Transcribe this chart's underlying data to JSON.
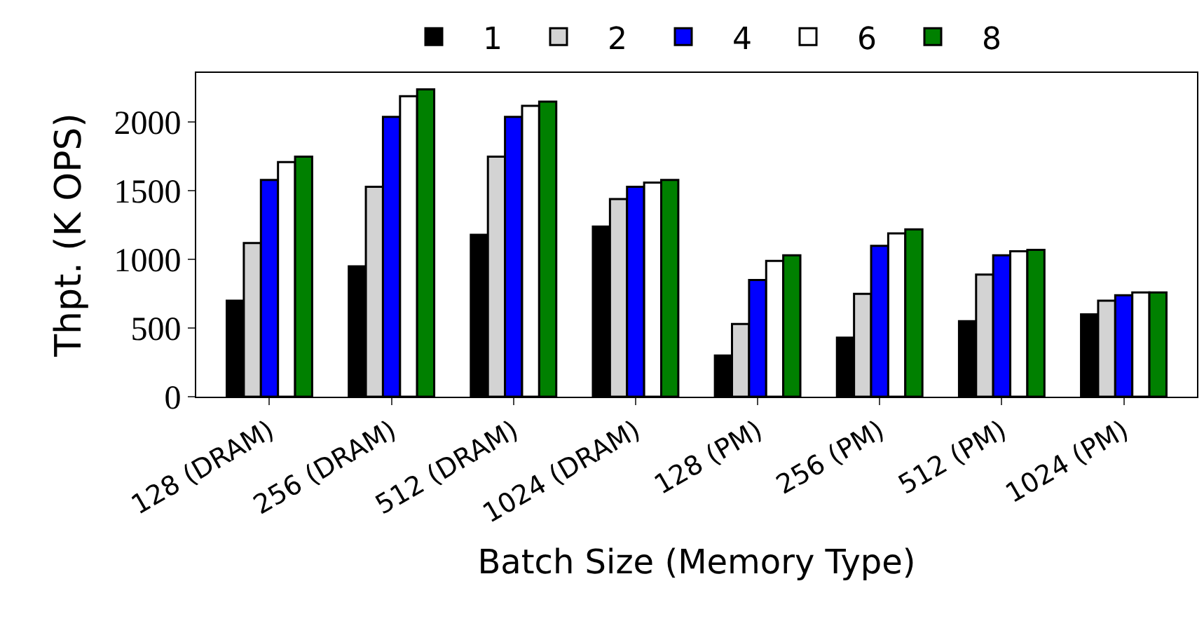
{
  "chart_data": {
    "type": "bar",
    "xlabel": "Batch Size (Memory Type)",
    "ylabel": "Thpt. (K OPS)",
    "categories": [
      "128 (DRAM)",
      "256 (DRAM)",
      "512 (DRAM)",
      "1024 (DRAM)",
      "128 (PM)",
      "256 (PM)",
      "512 (PM)",
      "1024 (PM)"
    ],
    "series": [
      {
        "name": "1",
        "color": "#000000",
        "values": [
          700,
          950,
          1180,
          1240,
          300,
          430,
          550,
          600
        ]
      },
      {
        "name": "2",
        "color": "#d3d3d3",
        "values": [
          1120,
          1530,
          1750,
          1440,
          530,
          750,
          890,
          700
        ]
      },
      {
        "name": "4",
        "color": "#0000ff",
        "values": [
          1580,
          2040,
          2040,
          1530,
          850,
          1100,
          1030,
          740
        ]
      },
      {
        "name": "6",
        "color": "#ffffff",
        "values": [
          1710,
          2190,
          2120,
          1560,
          990,
          1190,
          1060,
          760
        ]
      },
      {
        "name": "8",
        "color": "#008000",
        "values": [
          1750,
          2240,
          2150,
          1580,
          1030,
          1220,
          1070,
          760
        ]
      }
    ],
    "ylim": [
      0,
      2360
    ],
    "yticks": [
      0,
      500,
      1000,
      1500,
      2000
    ],
    "legend": "top"
  }
}
